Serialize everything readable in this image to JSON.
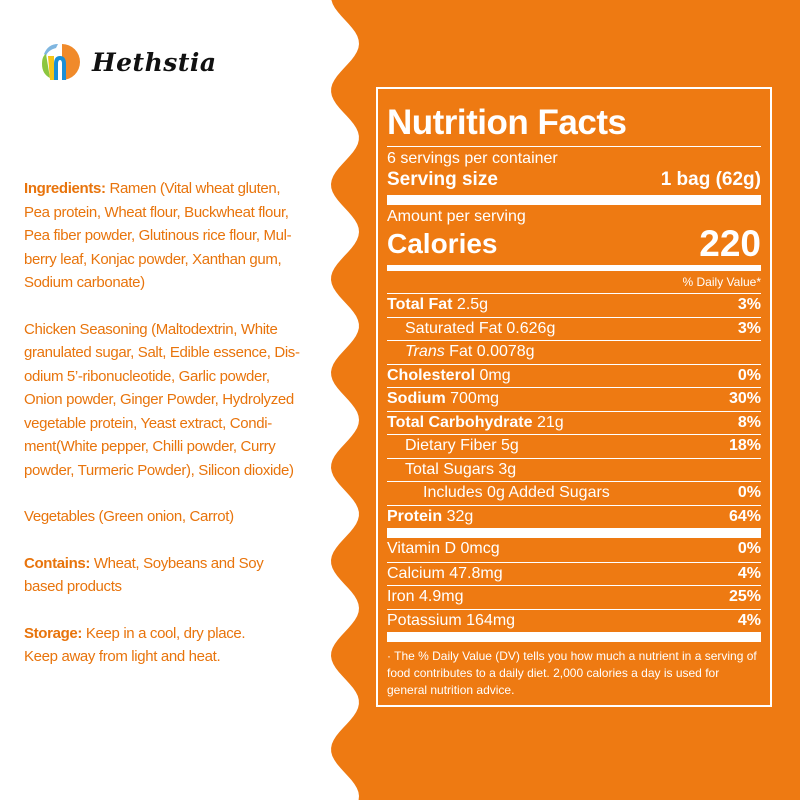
{
  "brand": {
    "name": "Hethstia"
  },
  "colors": {
    "orange": "#ee7a12",
    "text_orange": "#e8740c",
    "white": "#ffffff"
  },
  "ingredients": {
    "label": "Ingredients:",
    "lines": [
      " Ramen (Vital wheat gluten,",
      "Pea protein, Wheat flour, Buckwheat flour,",
      "Pea fiber powder, Glutinous rice flour, Mul-",
      "berry leaf, Konjac powder, Xanthan gum,",
      "Sodium carbonate)"
    ],
    "seasoning_lines": [
      "Chicken Seasoning (Maltodextrin, White",
      "granulated sugar, Salt, Edible essence, Dis-",
      "odium 5’-ribonucleotide, Garlic powder,",
      "Onion powder, Ginger Powder, Hydrolyzed",
      "vegetable protein, Yeast extract, Condi-",
      "ment(White pepper,  Chilli powder, Curry",
      "powder, Turmeric Powder), Silicon dioxide)"
    ],
    "vegetables": "Vegetables (Green onion, Carrot)"
  },
  "contains": {
    "label": "Contains:",
    "lines": [
      "  Wheat, Soybeans and Soy",
      "based products"
    ]
  },
  "storage": {
    "label": "Storage:",
    "lines": [
      " Keep in a cool, dry place.",
      "Keep away from light and heat."
    ]
  },
  "nutrition": {
    "title": "Nutrition Facts",
    "servings": "6 servings per container",
    "serving_size_label": "Serving size",
    "serving_size_value": "1 bag (62g)",
    "amount_label": "Amount per serving",
    "calories_label": "Calories",
    "calories_value": "220",
    "dv_header": "% Daily Value*",
    "rows": [
      {
        "name": "Total Fat",
        "amount": " 2.5g",
        "dv": "3%"
      },
      {
        "name": "Saturated Fat",
        "amount": " 0.626g",
        "dv": "3%"
      },
      {
        "name": "Trans",
        "amount": " Fat 0.0078g",
        "dv": ""
      },
      {
        "name": "Cholesterol",
        "amount": " 0mg",
        "dv": "0%"
      },
      {
        "name": "Sodium",
        "amount": " 700mg",
        "dv": "30%"
      },
      {
        "name": "Total Carbohydrate",
        "amount": " 21g",
        "dv": "8%"
      },
      {
        "name": "Dietary Fiber 5g",
        "amount": "",
        "dv": "18%"
      },
      {
        "name": "Total Sugars 3g",
        "amount": "",
        "dv": ""
      },
      {
        "name": "Includes 0g Added Sugars",
        "amount": "",
        "dv": "0%"
      },
      {
        "name": "Protein",
        "amount": " 32g",
        "dv": "64%"
      }
    ],
    "vitamins": [
      {
        "name": "Vitamin D 0mcg",
        "dv": "0%"
      },
      {
        "name": "Calcium 47.8mg",
        "dv": "4%"
      },
      {
        "name": "Iron 4.9mg",
        "dv": "25%"
      },
      {
        "name": "Potassium 164mg",
        "dv": "4%"
      }
    ],
    "footnote": "· The % Daily Value  (DV) tells you how much a nutrient in a serving of food contributes to a daily diet.  2,000 calories a day is used for general nutrition advice."
  }
}
